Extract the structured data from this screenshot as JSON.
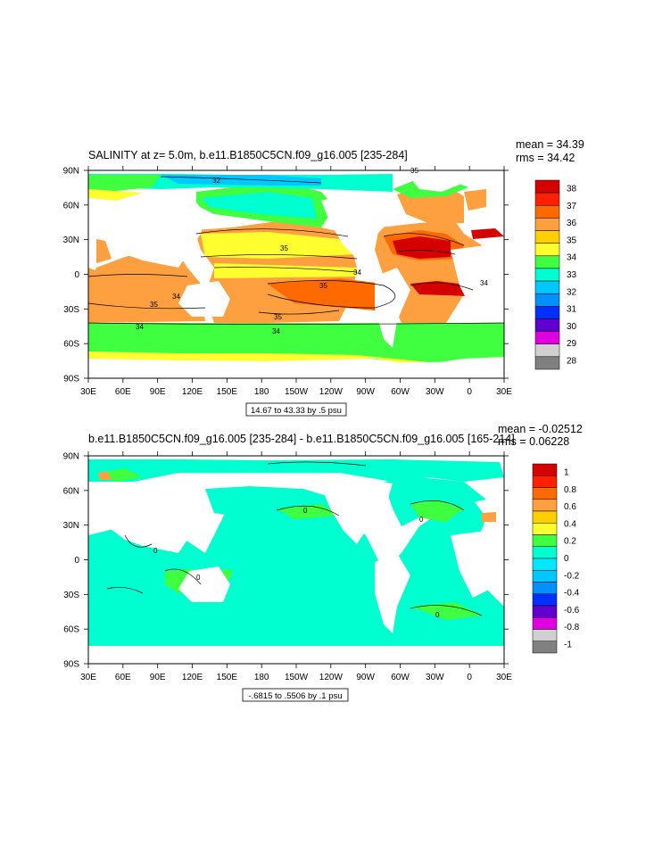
{
  "chart_data": [
    {
      "type": "heatmap",
      "title": "SALINITY at z=   5.0m, b.e11.B1850C5CN.f09_g16.005 [235-284]",
      "stats": {
        "mean": "mean = 34.39",
        "rms": "rms = 34.42"
      },
      "x_ticks": [
        "30E",
        "60E",
        "90E",
        "120E",
        "150E",
        "180",
        "150W",
        "120W",
        "90W",
        "60W",
        "30W",
        "0",
        "30E"
      ],
      "y_ticks": [
        "90N",
        "60N",
        "30N",
        "0",
        "30S",
        "60S",
        "90S"
      ],
      "colorbar": {
        "labels": [
          "38",
          "37",
          "36",
          "35",
          "34",
          "33",
          "32",
          "31",
          "30",
          "29",
          "28"
        ],
        "colors": [
          "#d50000",
          "#ff2000",
          "#ff6a00",
          "#ffa040",
          "#ffd000",
          "#ffff30",
          "#40ff40",
          "#00ffd0",
          "#00c8ff",
          "#0090ff",
          "#0030ff",
          "#6000d0",
          "#e000e0",
          "#d0d0d0",
          "#808080"
        ]
      },
      "contour_labels": [
        "32",
        "35",
        "34",
        "35",
        "34",
        "35",
        "35",
        "34",
        "35",
        "34",
        "34"
      ],
      "info": "14.67 to 43.33 by .5 psu"
    },
    {
      "type": "heatmap",
      "title": "b.e11.B1850C5CN.f09_g16.005 [235-284] - b.e11.B1850C5CN.f09_g16.005 [165-214]",
      "stats": {
        "mean": "mean = -0.02512",
        "rms": "rms = 0.06228"
      },
      "x_ticks": [
        "30E",
        "60E",
        "90E",
        "120E",
        "150E",
        "180",
        "150W",
        "120W",
        "90W",
        "60W",
        "30W",
        "0",
        "30E"
      ],
      "y_ticks": [
        "90N",
        "60N",
        "30N",
        "0",
        "30S",
        "60S",
        "90S"
      ],
      "colorbar": {
        "labels": [
          "1",
          "0.8",
          "0.6",
          "0.4",
          "0.2",
          "0",
          "-0.2",
          "-0.4",
          "-0.6",
          "-0.8",
          "-1"
        ],
        "colors": [
          "#d50000",
          "#ff2000",
          "#ff6a00",
          "#ffa040",
          "#ffd000",
          "#ffff30",
          "#40ff40",
          "#00ffd0",
          "#00e8ff",
          "#00c8ff",
          "#0090ff",
          "#0030ff",
          "#6000d0",
          "#e000e0",
          "#d0d0d0",
          "#808080"
        ]
      },
      "contour_labels": [
        "0",
        "0",
        "0",
        "0",
        "0"
      ],
      "info": "-.6815 to .5506 by .1 psu"
    }
  ]
}
